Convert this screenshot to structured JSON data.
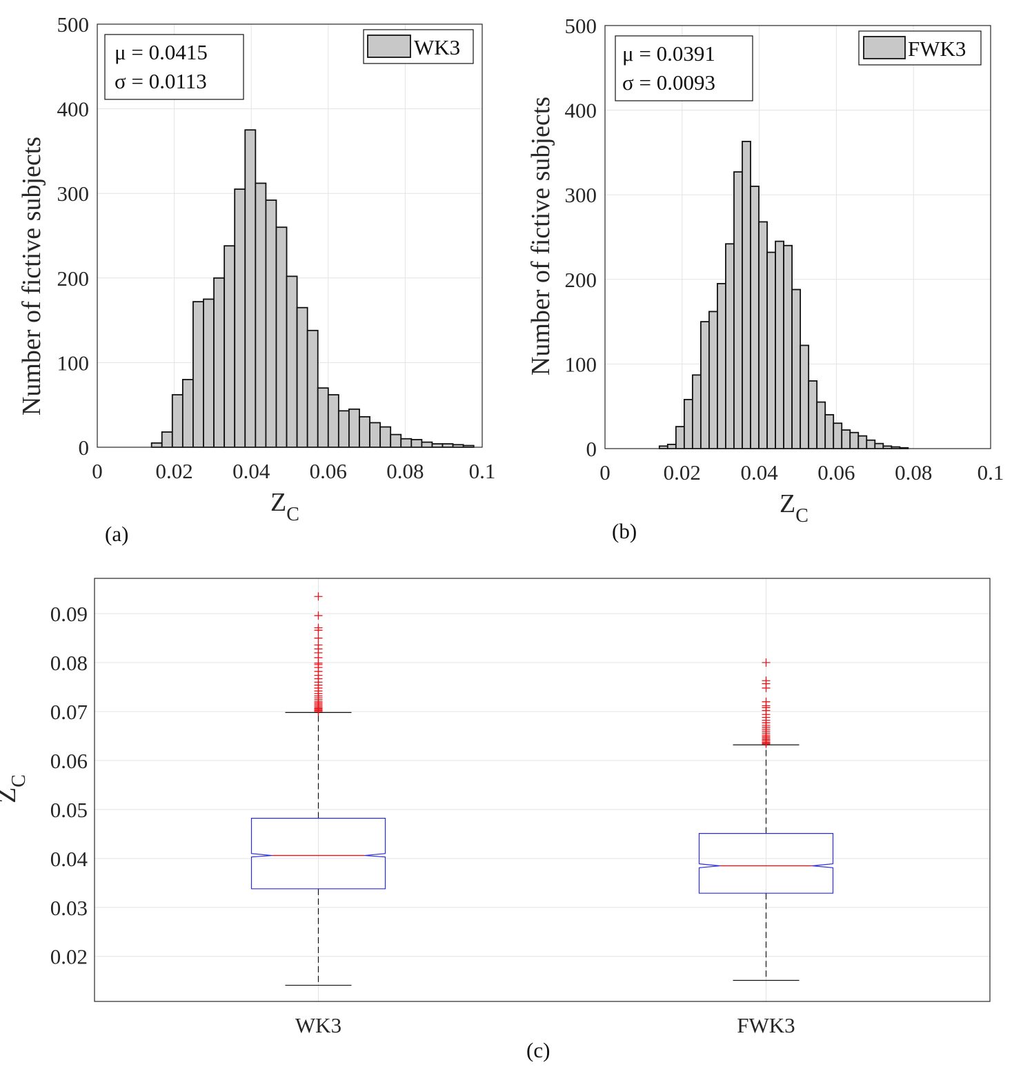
{
  "chart_data": [
    {
      "type": "bar",
      "panel_label": "(a)",
      "legend": "WK3",
      "stats": {
        "mu_label": "μ = 0.0415",
        "sigma_label": "σ = 0.0113"
      },
      "xlabel": "Z",
      "xlabel_sub": "C",
      "ylabel": "Number of fictive subjects",
      "xlim": [
        0,
        0.1
      ],
      "ylim": [
        0,
        500
      ],
      "xticks": [
        0,
        0.02,
        0.04,
        0.06,
        0.08,
        0.1
      ],
      "xtick_labels": [
        "0",
        "0.02",
        "0.04",
        "0.06",
        "0.08",
        "0.1"
      ],
      "yticks": [
        0,
        100,
        200,
        300,
        400,
        500
      ],
      "ytick_labels": [
        "0",
        "100",
        "200",
        "300",
        "400",
        "500"
      ],
      "bin_start": 0.0141,
      "bin_width": 0.0027,
      "values": [
        5,
        18,
        62,
        80,
        172,
        175,
        200,
        238,
        305,
        375,
        312,
        292,
        260,
        202,
        165,
        138,
        70,
        62,
        43,
        45,
        36,
        29,
        24,
        15,
        10,
        9,
        6,
        4,
        4,
        3,
        2
      ]
    },
    {
      "type": "bar",
      "panel_label": "(b)",
      "legend": "FWK3",
      "stats": {
        "mu_label": "μ = 0.0391",
        "sigma_label": "σ = 0.0093"
      },
      "xlabel": "Z",
      "xlabel_sub": "C",
      "ylabel": "Number of fictive subjects",
      "xlim": [
        0,
        0.1
      ],
      "ylim": [
        0,
        500
      ],
      "xticks": [
        0,
        0.02,
        0.04,
        0.06,
        0.08,
        0.1
      ],
      "xtick_labels": [
        "0",
        "0.02",
        "0.04",
        "0.06",
        "0.08",
        "0.1"
      ],
      "yticks": [
        0,
        100,
        200,
        300,
        400,
        500
      ],
      "ytick_labels": [
        "0",
        "100",
        "200",
        "300",
        "400",
        "500"
      ],
      "bin_start": 0.0141,
      "bin_width": 0.00215,
      "values": [
        3,
        5,
        26,
        58,
        87,
        150,
        162,
        195,
        242,
        327,
        363,
        310,
        268,
        232,
        245,
        240,
        188,
        122,
        80,
        55,
        40,
        30,
        22,
        19,
        15,
        10,
        6,
        3,
        2,
        1
      ]
    },
    {
      "type": "boxplot",
      "panel_label": "(c)",
      "ylabel": "Z",
      "ylabel_sub": "C",
      "ylim": [
        0.0108,
        0.0972
      ],
      "yticks": [
        0.02,
        0.03,
        0.04,
        0.05,
        0.06,
        0.07,
        0.08,
        0.09
      ],
      "ytick_labels": [
        "0.02",
        "0.03",
        "0.04",
        "0.05",
        "0.06",
        "0.07",
        "0.08",
        "0.09"
      ],
      "categories": [
        "WK3",
        "FWK3"
      ],
      "boxes": [
        {
          "name": "WK3",
          "q1": 0.0338,
          "median": 0.0406,
          "q3": 0.0482,
          "notch_low": 0.0403,
          "notch_high": 0.041,
          "whisker_low": 0.0141,
          "whisker_high": 0.0698,
          "outliers": [
            0.07,
            0.0702,
            0.0704,
            0.0706,
            0.0708,
            0.0711,
            0.0714,
            0.0717,
            0.072,
            0.0724,
            0.0728,
            0.0732,
            0.0737,
            0.0742,
            0.0748,
            0.0754,
            0.076,
            0.0767,
            0.0774,
            0.0782,
            0.079,
            0.0796,
            0.0799,
            0.081,
            0.082,
            0.0828,
            0.0836,
            0.085,
            0.0866,
            0.0871,
            0.0896,
            0.0935
          ]
        },
        {
          "name": "FWK3",
          "q1": 0.0329,
          "median": 0.0385,
          "q3": 0.0451,
          "notch_low": 0.0381,
          "notch_high": 0.0389,
          "whisker_low": 0.0151,
          "whisker_high": 0.0632,
          "outliers": [
            0.0634,
            0.0636,
            0.0638,
            0.0641,
            0.0643,
            0.0646,
            0.0649,
            0.0652,
            0.0656,
            0.066,
            0.0664,
            0.0668,
            0.0672,
            0.0677,
            0.0682,
            0.0688,
            0.0694,
            0.0702,
            0.0708,
            0.0712,
            0.072,
            0.0748,
            0.0757,
            0.0763,
            0.08
          ]
        }
      ]
    }
  ]
}
